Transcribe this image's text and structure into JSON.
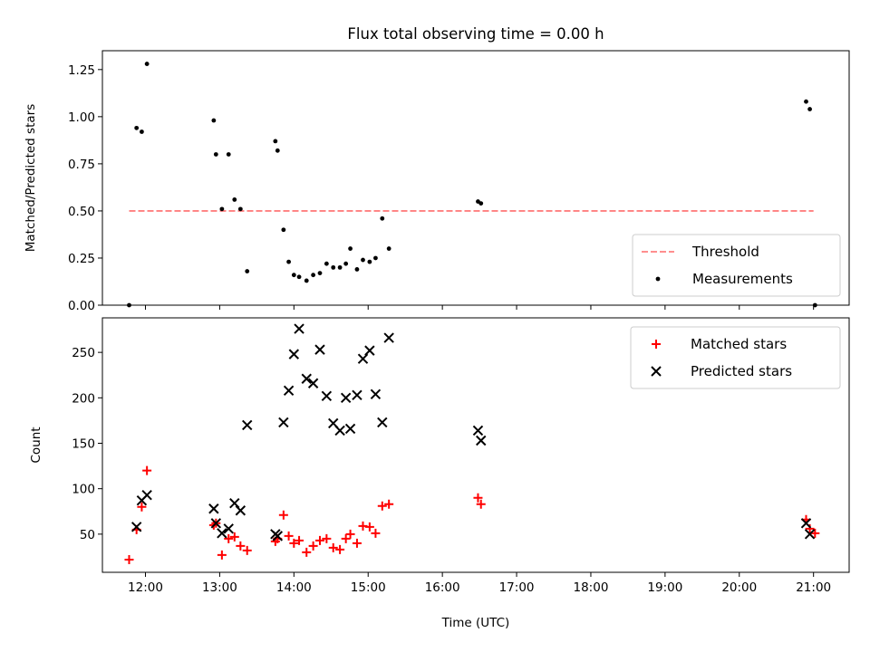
{
  "figure": {
    "title": "Flux total observing time = 0.00 h",
    "xlabel": "Time (UTC)"
  },
  "chart_data": [
    {
      "type": "scatter",
      "panel": "top",
      "title": "Flux total observing time = 0.00 h",
      "xlabel": "",
      "ylabel": "Matched/Predicted stars",
      "xlim": [
        11.42,
        21.48
      ],
      "ylim": [
        0,
        1.35
      ],
      "x_ticks": [
        12,
        13,
        14,
        15,
        16,
        17,
        18,
        19,
        20,
        21
      ],
      "x_tick_labels_visible": false,
      "y_ticks": [
        0,
        0.25,
        0.5,
        0.75,
        1.0,
        1.25
      ],
      "y_tick_labels": [
        "0.00",
        "0.25",
        "0.50",
        "0.75",
        "1.00",
        "1.25"
      ],
      "grid": false,
      "legend_position": "lower-right",
      "threshold": {
        "name": "Threshold",
        "value": 0.5,
        "x": [
          11.78,
          21.0
        ],
        "color": "#ff7f7f",
        "style": "dashed"
      },
      "series": [
        {
          "name": "Measurements",
          "color": "#000000",
          "marker": "dot",
          "x": [
            11.78,
            11.88,
            11.95,
            12.02,
            12.92,
            12.95,
            13.03,
            13.12,
            13.2,
            13.28,
            13.37,
            13.75,
            13.78,
            13.86,
            13.93,
            14.0,
            14.07,
            14.17,
            14.26,
            14.35,
            14.44,
            14.53,
            14.62,
            14.7,
            14.76,
            14.85,
            14.93,
            15.02,
            15.1,
            15.19,
            15.28,
            16.48,
            16.52,
            20.9,
            20.95,
            21.02
          ],
          "y": [
            0.0,
            0.94,
            0.92,
            1.28,
            0.98,
            0.8,
            0.51,
            0.8,
            0.56,
            0.51,
            0.18,
            0.87,
            0.82,
            0.4,
            0.23,
            0.16,
            0.15,
            0.13,
            0.16,
            0.17,
            0.22,
            0.2,
            0.2,
            0.22,
            0.3,
            0.19,
            0.24,
            0.23,
            0.25,
            0.46,
            0.3,
            0.55,
            0.54,
            1.08,
            1.04,
            0.0
          ]
        }
      ]
    },
    {
      "type": "scatter",
      "panel": "bottom",
      "xlabel": "Time (UTC)",
      "ylabel": "Count",
      "xlim": [
        11.42,
        21.48
      ],
      "ylim": [
        8,
        288
      ],
      "x_ticks": [
        12,
        13,
        14,
        15,
        16,
        17,
        18,
        19,
        20,
        21
      ],
      "x_tick_labels": [
        "12:00",
        "13:00",
        "14:00",
        "15:00",
        "16:00",
        "17:00",
        "18:00",
        "19:00",
        "20:00",
        "21:00"
      ],
      "y_ticks": [
        50,
        100,
        150,
        200,
        250
      ],
      "y_tick_labels": [
        "50",
        "100",
        "150",
        "200",
        "250"
      ],
      "grid": false,
      "legend_position": "top-right",
      "series": [
        {
          "name": "Matched stars",
          "color": "#ff0000",
          "marker": "plus",
          "x": [
            11.78,
            11.88,
            11.95,
            12.02,
            12.92,
            12.95,
            13.03,
            13.12,
            13.2,
            13.28,
            13.37,
            13.75,
            13.78,
            13.86,
            13.93,
            14.0,
            14.07,
            14.17,
            14.26,
            14.35,
            14.44,
            14.53,
            14.62,
            14.7,
            14.76,
            14.85,
            14.93,
            15.02,
            15.1,
            15.19,
            15.28,
            16.48,
            16.52,
            20.9,
            20.95,
            21.02
          ],
          "y": [
            22,
            55,
            80,
            120,
            60,
            62,
            27,
            45,
            47,
            37,
            32,
            42,
            45,
            71,
            48,
            40,
            43,
            30,
            37,
            43,
            45,
            35,
            33,
            45,
            50,
            40,
            59,
            58,
            51,
            81,
            83,
            90,
            83,
            66,
            56,
            51
          ]
        },
        {
          "name": "Predicted stars",
          "color": "#000000",
          "marker": "x",
          "x": [
            11.88,
            11.95,
            12.02,
            12.92,
            12.95,
            13.03,
            13.12,
            13.2,
            13.28,
            13.37,
            13.75,
            13.78,
            13.86,
            13.93,
            14.0,
            14.07,
            14.17,
            14.26,
            14.35,
            14.44,
            14.53,
            14.62,
            14.7,
            14.76,
            14.85,
            14.93,
            15.02,
            15.1,
            15.19,
            15.28,
            16.48,
            16.52,
            20.9,
            20.95
          ],
          "y": [
            58,
            87,
            93,
            78,
            62,
            51,
            56,
            84,
            76,
            170,
            50,
            48,
            173,
            208,
            248,
            276,
            221,
            216,
            253,
            202,
            172,
            164,
            200,
            166,
            203,
            243,
            252,
            204,
            173,
            266,
            164,
            153,
            62,
            50
          ]
        }
      ]
    }
  ]
}
